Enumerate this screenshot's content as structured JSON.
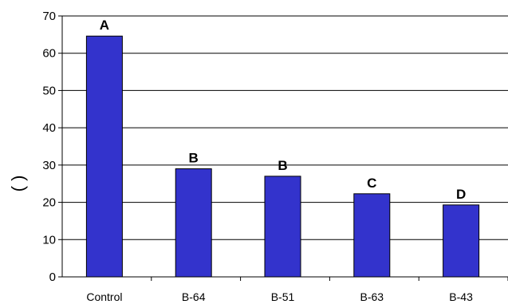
{
  "chart_data": {
    "type": "bar",
    "categories": [
      "Control",
      "B-64",
      "B-51",
      "B-63",
      "B-43"
    ],
    "values": [
      64.6,
      29.0,
      27.0,
      22.3,
      19.3
    ],
    "data_labels": [
      "A",
      "B",
      "B",
      "C",
      "D"
    ],
    "title": "",
    "xlabel": "",
    "ylabel": "(     )",
    "ylim": [
      0,
      70
    ],
    "yticks": [
      0,
      10,
      20,
      30,
      40,
      50,
      60,
      70
    ],
    "grid": true,
    "legend": "none",
    "bar_color": "#3333cc"
  }
}
